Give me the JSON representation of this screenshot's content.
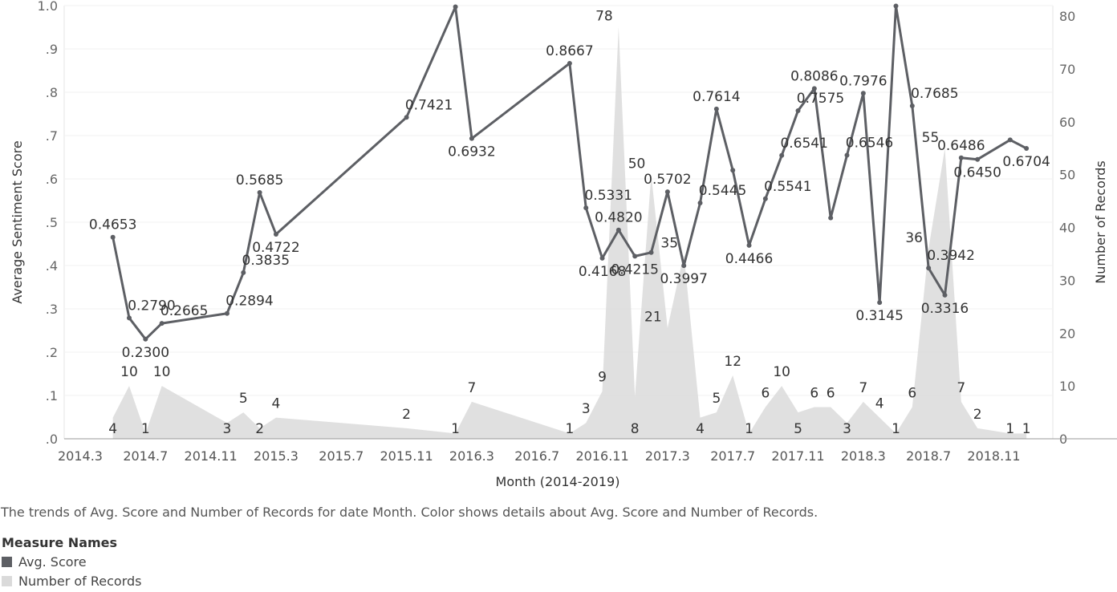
{
  "chart_data": {
    "type": "line",
    "xlabel": "Month (2014-2019)",
    "ylabel_left": "Average Sentiment Score",
    "ylabel_right": "Number of Records",
    "yticks_left": [
      "1.0",
      ".9",
      ".8",
      ".7",
      ".6",
      ".5",
      ".4",
      ".3",
      ".2",
      ".1",
      ".0"
    ],
    "yticks_right": [
      "80",
      "70",
      "60",
      "50",
      "40",
      "30",
      "20",
      "10",
      "0"
    ],
    "ylim_left": [
      0,
      1
    ],
    "ylim_right": [
      0,
      82
    ],
    "x_ticks": [
      "2014.3",
      "2014.7",
      "2014.11",
      "2015.3",
      "2015.7",
      "2015.11",
      "2016.3",
      "2016.7",
      "2016.11",
      "2017.3",
      "2017.7",
      "2017.11",
      "2018.3",
      "2018.7",
      "2018.11"
    ],
    "x_start": "2014.3",
    "grid": true,
    "caption": "The trends of Avg. Score and Number of Records for date Month.  Color shows details about Avg. Score and Number of Records.",
    "legend": {
      "title": "Measure Names",
      "position": "bottom-left",
      "items": [
        {
          "label": "Avg. Score",
          "color": "#5d5f64"
        },
        {
          "label": "Number of Records",
          "color": "#dadada"
        }
      ]
    },
    "series": [
      {
        "name": "Avg. Score",
        "color": "#5d5f64",
        "points": [
          {
            "x": "2014.5",
            "y": 0.4653,
            "label": "0.4653"
          },
          {
            "x": "2014.6",
            "y": 0.279,
            "label": "0.2790"
          },
          {
            "x": "2014.7",
            "y": 0.23,
            "label": "0.2300"
          },
          {
            "x": "2014.8",
            "y": 0.2665,
            "label": "0.2665"
          },
          {
            "x": "2014.12",
            "y": 0.2894,
            "label": "0.2894"
          },
          {
            "x": "2015.1",
            "y": 0.3835,
            "label": "0.3835"
          },
          {
            "x": "2015.2",
            "y": 0.5685,
            "label": "0.5685"
          },
          {
            "x": "2015.3",
            "y": 0.4722,
            "label": "0.4722"
          },
          {
            "x": "2015.11",
            "y": 0.7421,
            "label": "0.7421"
          },
          {
            "x": "2016.2",
            "y": 0.9972,
            "label": "0.9972"
          },
          {
            "x": "2016.3",
            "y": 0.6932,
            "label": "0.6932"
          },
          {
            "x": "2016.9",
            "y": 0.8667,
            "label": "0.8667"
          },
          {
            "x": "2016.10",
            "y": 0.5331,
            "label": "0.5331"
          },
          {
            "x": "2016.11",
            "y": 0.4168,
            "label": "0.4168"
          },
          {
            "x": "2016.12",
            "y": 0.482,
            "label": "0.4820"
          },
          {
            "x": "2017.1",
            "y": 0.4215,
            "label": "0.4215"
          },
          {
            "x": "2017.2",
            "y": 0.43,
            "label": ""
          },
          {
            "x": "2017.3",
            "y": 0.5702,
            "label": "0.5702"
          },
          {
            "x": "2017.4",
            "y": 0.3997,
            "label": "0.3997"
          },
          {
            "x": "2017.5",
            "y": 0.5445,
            "label": "0.5445"
          },
          {
            "x": "2017.6",
            "y": 0.7614,
            "label": "0.7614"
          },
          {
            "x": "2017.7",
            "y": 0.62,
            "label": ""
          },
          {
            "x": "2017.8",
            "y": 0.4466,
            "label": "0.4466"
          },
          {
            "x": "2017.9",
            "y": 0.5541,
            "label": "0.5541"
          },
          {
            "x": "2017.10",
            "y": 0.6541,
            "label": "0.6541"
          },
          {
            "x": "2017.11",
            "y": 0.7575,
            "label": "0.7575"
          },
          {
            "x": "2017.12",
            "y": 0.8086,
            "label": "0.8086"
          },
          {
            "x": "2018.1",
            "y": 0.51,
            "label": ""
          },
          {
            "x": "2018.2",
            "y": 0.6546,
            "label": "0.6546"
          },
          {
            "x": "2018.3",
            "y": 0.7976,
            "label": "0.7976"
          },
          {
            "x": "2018.4",
            "y": 0.3145,
            "label": "0.3145"
          },
          {
            "x": "2018.5",
            "y": 0.999,
            "label": "0.9990"
          },
          {
            "x": "2018.6",
            "y": 0.7685,
            "label": "0.7685"
          },
          {
            "x": "2018.7",
            "y": 0.3942,
            "label": "0.3942"
          },
          {
            "x": "2018.8",
            "y": 0.3316,
            "label": "0.3316"
          },
          {
            "x": "2018.9",
            "y": 0.6486,
            "label": "0.6486"
          },
          {
            "x": "2018.10",
            "y": 0.645,
            "label": "0.6450"
          },
          {
            "x": "2018.12",
            "y": 0.69,
            "label": ""
          },
          {
            "x": "2019.1",
            "y": 0.6704,
            "label": "0.6704"
          }
        ]
      },
      {
        "name": "Number of Records",
        "color": "#dadada",
        "points": [
          {
            "x": "2014.5",
            "y": 4,
            "label": "4"
          },
          {
            "x": "2014.6",
            "y": 10,
            "label": "10"
          },
          {
            "x": "2014.7",
            "y": 1,
            "label": "1"
          },
          {
            "x": "2014.8",
            "y": 10,
            "label": "10"
          },
          {
            "x": "2014.12",
            "y": 3,
            "label": "3"
          },
          {
            "x": "2015.1",
            "y": 5,
            "label": "5"
          },
          {
            "x": "2015.2",
            "y": 2,
            "label": "2"
          },
          {
            "x": "2015.3",
            "y": 4,
            "label": "4"
          },
          {
            "x": "2015.11",
            "y": 2,
            "label": "2"
          },
          {
            "x": "2016.2",
            "y": 1,
            "label": "1"
          },
          {
            "x": "2016.3",
            "y": 7,
            "label": "7"
          },
          {
            "x": "2016.9",
            "y": 1,
            "label": "1"
          },
          {
            "x": "2016.10",
            "y": 3,
            "label": "3"
          },
          {
            "x": "2016.11",
            "y": 9,
            "label": "9"
          },
          {
            "x": "2016.12",
            "y": 78,
            "label": "78"
          },
          {
            "x": "2017.1",
            "y": 8,
            "label": "8"
          },
          {
            "x": "2017.2",
            "y": 50,
            "label": "50"
          },
          {
            "x": "2017.3",
            "y": 21,
            "label": "21"
          },
          {
            "x": "2017.4",
            "y": 35,
            "label": "35"
          },
          {
            "x": "2017.5",
            "y": 4,
            "label": "4"
          },
          {
            "x": "2017.6",
            "y": 5,
            "label": "5"
          },
          {
            "x": "2017.7",
            "y": 12,
            "label": "12"
          },
          {
            "x": "2017.8",
            "y": 1,
            "label": "1"
          },
          {
            "x": "2017.9",
            "y": 6,
            "label": "6"
          },
          {
            "x": "2017.10",
            "y": 10,
            "label": "10"
          },
          {
            "x": "2017.11",
            "y": 5,
            "label": "5"
          },
          {
            "x": "2017.12",
            "y": 6,
            "label": "6"
          },
          {
            "x": "2018.1",
            "y": 6,
            "label": "6"
          },
          {
            "x": "2018.2",
            "y": 3,
            "label": "3"
          },
          {
            "x": "2018.3",
            "y": 7,
            "label": "7"
          },
          {
            "x": "2018.4",
            "y": 4,
            "label": "4"
          },
          {
            "x": "2018.5",
            "y": 1,
            "label": "1"
          },
          {
            "x": "2018.6",
            "y": 6,
            "label": "6"
          },
          {
            "x": "2018.7",
            "y": 36,
            "label": "36"
          },
          {
            "x": "2018.8",
            "y": 55,
            "label": "55"
          },
          {
            "x": "2018.9",
            "y": 7,
            "label": "7"
          },
          {
            "x": "2018.10",
            "y": 2,
            "label": "2"
          },
          {
            "x": "2018.12",
            "y": 1,
            "label": "1"
          },
          {
            "x": "2019.1",
            "y": 1,
            "label": "1"
          }
        ]
      }
    ]
  }
}
